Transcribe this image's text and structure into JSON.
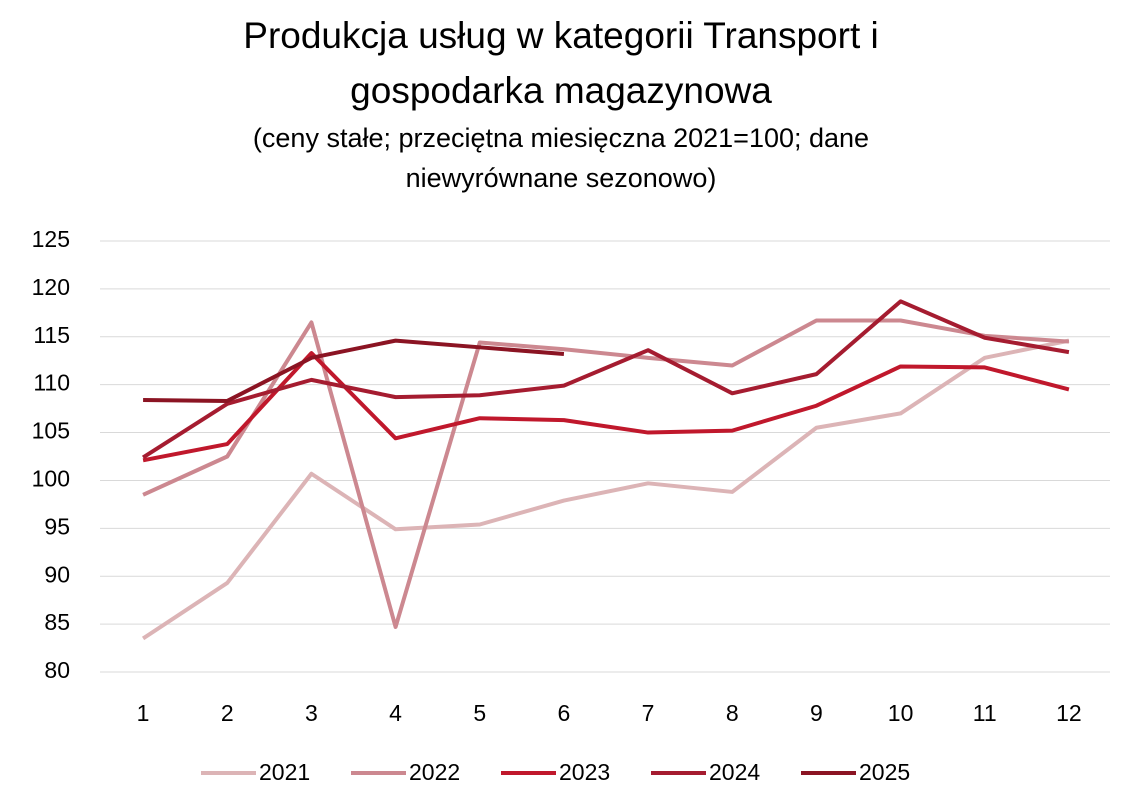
{
  "chart_data": {
    "type": "line",
    "title": "Produkcja usług w kategorii Transport i gospodarka magazynowa",
    "subtitle": "(ceny stałe; przeciętna miesięczna 2021=100; dane niewyrównane sezonowo)",
    "categories": [
      "1",
      "2",
      "3",
      "4",
      "5",
      "6",
      "7",
      "8",
      "9",
      "10",
      "11",
      "12"
    ],
    "series": [
      {
        "name": "2021",
        "color": "#dcb4b6",
        "values": [
          83.5,
          89.3,
          100.7,
          94.9,
          95.4,
          97.9,
          99.7,
          98.8,
          105.5,
          107.0,
          112.8,
          114.6
        ]
      },
      {
        "name": "2022",
        "color": "#cc8890",
        "values": [
          98.5,
          102.5,
          116.5,
          84.7,
          114.4,
          113.7,
          112.8,
          112.0,
          116.7,
          116.7,
          115.1,
          114.5
        ]
      },
      {
        "name": "2023",
        "color": "#c0182c",
        "values": [
          102.1,
          103.8,
          113.3,
          104.4,
          106.5,
          106.3,
          105.0,
          105.2,
          107.8,
          111.9,
          111.8,
          109.5
        ]
      },
      {
        "name": "2024",
        "color": "#a51c30",
        "values": [
          102.4,
          108.0,
          110.5,
          108.7,
          108.9,
          109.9,
          113.6,
          109.1,
          111.1,
          118.7,
          114.9,
          113.4
        ]
      },
      {
        "name": "2025",
        "color": "#8b1423",
        "values": [
          108.4,
          108.3,
          112.8,
          114.6,
          113.9,
          113.2,
          null,
          null,
          null,
          null,
          null,
          null
        ]
      }
    ],
    "ylim": [
      80,
      125
    ],
    "yticks": [
      80,
      85,
      90,
      95,
      100,
      105,
      110,
      115,
      120,
      125
    ],
    "grid": true,
    "legend": "bottom"
  }
}
